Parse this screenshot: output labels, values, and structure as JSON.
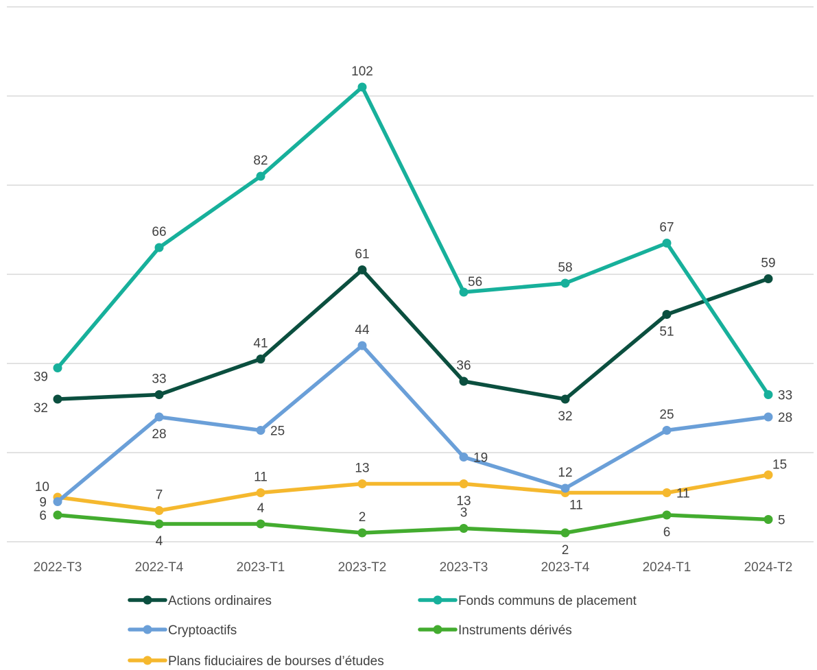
{
  "chart_data": {
    "type": "line",
    "title": "",
    "xlabel": "",
    "ylabel": "",
    "ylim": [
      0,
      120
    ],
    "y_gridlines": [
      0,
      20,
      40,
      60,
      80,
      100,
      120
    ],
    "grid": true,
    "legend_position": "bottom",
    "categories": [
      "2022-T3",
      "2022-T4",
      "2023-T1",
      "2023-T2",
      "2023-T3",
      "2023-T4",
      "2024-T1",
      "2024-T2"
    ],
    "series": [
      {
        "name": "Actions ordinaires",
        "color": "#0b4f3f",
        "values": [
          32,
          33,
          41,
          61,
          36,
          32,
          51,
          59
        ],
        "label_positions": [
          "below-left",
          "above",
          "above",
          "above",
          "above",
          "below",
          "below",
          "above"
        ]
      },
      {
        "name": "Fonds communs de placement",
        "color": "#17b09b",
        "values": [
          39,
          66,
          82,
          102,
          56,
          58,
          67,
          33
        ],
        "label_positions": [
          "below-left",
          "above",
          "above",
          "above",
          "above-right",
          "above",
          "above",
          "right"
        ]
      },
      {
        "name": "Cryptoactifs",
        "color": "#6a9fd8",
        "values": [
          9,
          28,
          25,
          44,
          19,
          12,
          25,
          28
        ],
        "label_positions": [
          "left",
          "below",
          "right",
          "above",
          "right",
          "above",
          "above",
          "right"
        ]
      },
      {
        "name": "Instruments dérivés",
        "color": "#43ac2f",
        "values": [
          6,
          4,
          4,
          2,
          3,
          2,
          6,
          5
        ],
        "label_positions": [
          "left",
          "below",
          "above",
          "above",
          "above",
          "below",
          "below",
          "right"
        ]
      },
      {
        "name": "Plans fiduciaires de bourses d’études",
        "color": "#f5b82e",
        "values": [
          10,
          7,
          11,
          13,
          13,
          11,
          11,
          15
        ],
        "label_positions": [
          "above-left",
          "above",
          "above",
          "above",
          "below",
          "below-right",
          "right",
          "above-right"
        ]
      }
    ]
  }
}
